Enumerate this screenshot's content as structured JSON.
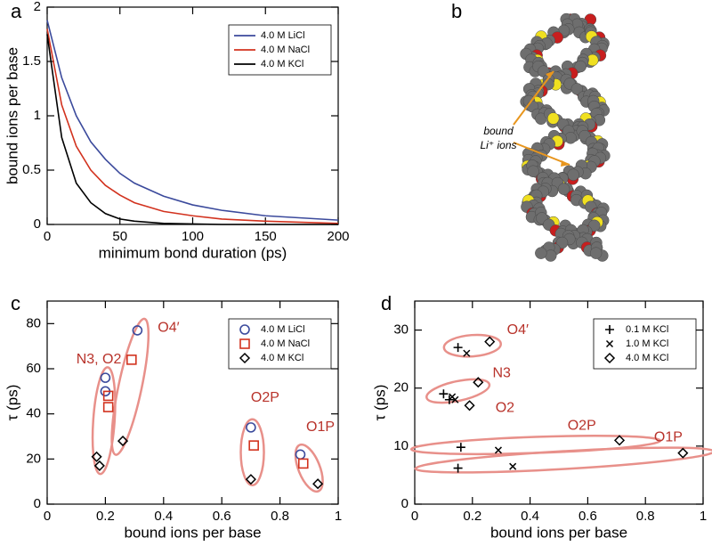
{
  "chart_data": [
    {
      "type": "line",
      "label": "a",
      "xlabel": "minimum bond duration (ps)",
      "ylabel": "bound ions per base",
      "x": [
        0,
        10,
        20,
        30,
        40,
        50,
        60,
        80,
        100,
        120,
        150,
        200
      ],
      "series": [
        {
          "name": "4.0 M LiCl",
          "color": "#3b4a9c",
          "values": [
            1.88,
            1.35,
            1.0,
            0.76,
            0.6,
            0.47,
            0.38,
            0.26,
            0.18,
            0.13,
            0.08,
            0.04
          ]
        },
        {
          "name": "4.0 M NaCl",
          "color": "#d2321e",
          "values": [
            1.8,
            1.1,
            0.72,
            0.5,
            0.36,
            0.27,
            0.2,
            0.12,
            0.08,
            0.05,
            0.03,
            0.01
          ]
        },
        {
          "name": "4.0 M KCl",
          "color": "#000000",
          "values": [
            1.75,
            0.8,
            0.38,
            0.2,
            0.1,
            0.05,
            0.03,
            0.01,
            0.005,
            0,
            0,
            0
          ]
        }
      ],
      "xlim": [
        0,
        200
      ],
      "xticks": [
        0,
        50,
        100,
        150,
        200
      ],
      "ylim": [
        0,
        2
      ],
      "yticks": [
        0,
        0.5,
        1,
        1.5,
        2
      ],
      "legend": "upper-right"
    },
    {
      "type": "illustration",
      "label": "b",
      "annotation_lines": [
        "bound",
        "Li⁺ ions"
      ]
    },
    {
      "type": "scatter",
      "label": "c",
      "xlabel": "bound ions per base",
      "ylabel": "τ (ps)",
      "series": [
        {
          "name": "4.0 M LiCl",
          "color": "#3b4a9c",
          "marker": "circle",
          "x": [
            0.2,
            0.2,
            0.31,
            0.7,
            0.87
          ],
          "values": [
            56,
            50,
            77,
            34,
            22
          ]
        },
        {
          "name": "4.0 M NaCl",
          "color": "#d2321e",
          "marker": "square",
          "x": [
            0.21,
            0.21,
            0.29,
            0.71,
            0.88
          ],
          "values": [
            48,
            43,
            64,
            26,
            18
          ]
        },
        {
          "name": "4.0 M KCl",
          "color": "#000000",
          "marker": "diamond",
          "x": [
            0.17,
            0.18,
            0.26,
            0.7,
            0.93
          ],
          "values": [
            21,
            17,
            28,
            11,
            9
          ]
        }
      ],
      "annotations": [
        {
          "text": "N3, O2",
          "x": 0.1,
          "y": 64
        },
        {
          "text": "O4′",
          "x": 0.38,
          "y": 78
        },
        {
          "text": "O2P",
          "x": 0.7,
          "y": 47
        },
        {
          "text": "O1P",
          "x": 0.89,
          "y": 34
        }
      ],
      "xlim": [
        0,
        1
      ],
      "xticks": [
        0,
        0.2,
        0.4,
        0.6,
        0.8,
        1
      ],
      "ylim": [
        0,
        90
      ],
      "yticks": [
        0,
        20,
        40,
        60,
        80
      ],
      "legend": "upper-right"
    },
    {
      "type": "scatter",
      "label": "d",
      "xlabel": "bound ions per base",
      "ylabel": "τ (ps)",
      "series": [
        {
          "name": "0.1 M KCl",
          "color": "#000000",
          "marker": "plus",
          "x": [
            0.15,
            0.1,
            0.12,
            0.16,
            0.15
          ],
          "values": [
            27,
            19,
            18,
            9.8,
            6.2
          ]
        },
        {
          "name": "1.0 M KCl",
          "color": "#000000",
          "marker": "cross",
          "x": [
            0.18,
            0.13,
            0.14,
            0.29,
            0.34
          ],
          "values": [
            26,
            18.5,
            18,
            9.3,
            6.5
          ]
        },
        {
          "name": "4.0 M KCl",
          "color": "#000000",
          "marker": "diamond",
          "x": [
            0.26,
            0.22,
            0.19,
            0.71,
            0.93
          ],
          "values": [
            28,
            21,
            17,
            11,
            8.8
          ]
        }
      ],
      "annotations": [
        {
          "text": "O4′",
          "x": 0.32,
          "y": 30
        },
        {
          "text": "N3",
          "x": 0.27,
          "y": 22.5
        },
        {
          "text": "O2",
          "x": 0.28,
          "y": 16.5
        },
        {
          "text": "O2P",
          "x": 0.53,
          "y": 13.5
        },
        {
          "text": "O1P",
          "x": 0.83,
          "y": 11.5
        }
      ],
      "xlim": [
        0,
        1
      ],
      "xticks": [
        0,
        0.2,
        0.4,
        0.6,
        0.8,
        1
      ],
      "ylim": [
        0,
        35
      ],
      "yticks": [
        0,
        10,
        20,
        30
      ],
      "legend": "upper-right"
    }
  ]
}
